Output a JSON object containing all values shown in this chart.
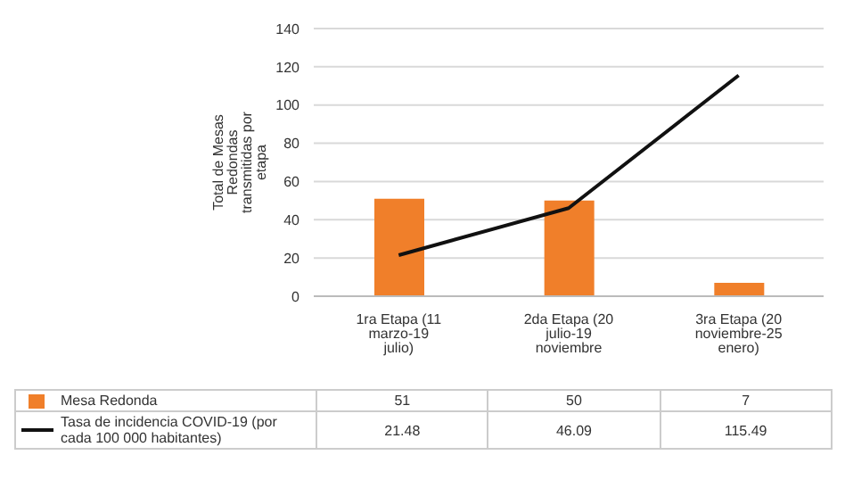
{
  "chart_data": {
    "type": "bar",
    "ylabel": "Total de Mesas Redondas transmitidas por etapa",
    "categories": [
      "1ra Etapa (11 marzo-19 julio)",
      "2da Etapa (20 julio-19 noviembre",
      "3ra Etapa (20 noviembre-25 enero)"
    ],
    "series": [
      {
        "name": "Mesa Redonda",
        "color": "#f07f2a",
        "values": [
          51,
          50,
          7
        ]
      },
      {
        "name": "Tasa de incidencia COVID-19 (por cada 100 000 habitantes)",
        "type": "line",
        "color": "#111111",
        "values": [
          21.48,
          46.09,
          115.49
        ]
      }
    ],
    "ylim": [
      0,
      140
    ],
    "yticks": [
      0,
      20,
      40,
      60,
      80,
      100,
      120,
      140
    ],
    "grid": "y",
    "legend": "bottom",
    "data_labels": true,
    "marker": "none"
  }
}
